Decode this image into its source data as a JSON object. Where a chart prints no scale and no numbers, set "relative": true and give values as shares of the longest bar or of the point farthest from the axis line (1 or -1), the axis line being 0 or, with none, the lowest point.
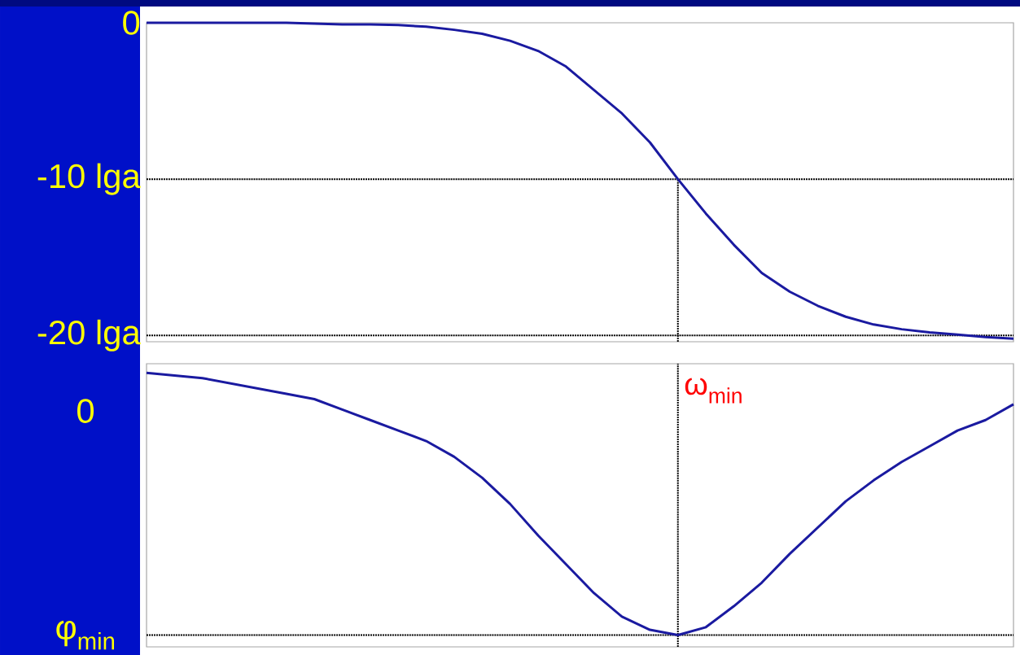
{
  "chart_data": [
    {
      "type": "line",
      "categories": [
        null,
        null,
        null,
        null,
        null,
        null,
        null,
        null,
        null,
        null,
        null,
        null,
        null,
        null,
        null,
        null,
        null,
        null,
        null,
        null,
        null,
        null,
        null,
        null,
        null,
        null,
        null,
        null,
        null,
        null,
        null,
        null
      ],
      "series": [
        {
          "color": "#1a1aa0",
          "values": [
            0,
            0,
            0,
            0,
            0,
            0,
            -0.05,
            -0.1,
            -0.1,
            -0.15,
            -0.25,
            -0.45,
            -0.7,
            -1.15,
            -1.8,
            -2.8,
            -4.3,
            -5.8,
            -7.65,
            -10,
            -12.2,
            -14.2,
            -16,
            -17.2,
            -18.1,
            -18.8,
            -19.3,
            -19.6,
            -19.8,
            -19.95,
            -20.1,
            -20.2
          ]
        }
      ],
      "ylim": [
        -20.4,
        0
      ],
      "yticks": [
        0,
        {
          "value": -10,
          "label": "-10 lga"
        },
        {
          "value": -20,
          "label": "-20 lga"
        }
      ],
      "tick_labels": "y",
      "ref_lines": [
        {
          "axis": "y",
          "value": -10,
          "color": "#000000",
          "line_style": "dotted"
        },
        {
          "axis": "y",
          "value": -20,
          "color": "#000000",
          "line_style": "dotted"
        }
      ]
    },
    {
      "type": "line",
      "relative": true,
      "categories": [
        null,
        null,
        null,
        null,
        null,
        null,
        null,
        null,
        null,
        null,
        null,
        null,
        null,
        null,
        null,
        null,
        null,
        null,
        null,
        null,
        null,
        null,
        null,
        null,
        null,
        null,
        null,
        null,
        null,
        null,
        null,
        null
      ],
      "series": [
        {
          "color": "#1a1aa0",
          "values": [
            1,
            0.99,
            0.98,
            0.96,
            0.94,
            0.92,
            0.9,
            0.86,
            0.82,
            0.78,
            0.74,
            0.68,
            0.6,
            0.5,
            0.38,
            0.27,
            0.16,
            0.07,
            0.02,
            0,
            0.03,
            0.11,
            0.2,
            0.31,
            0.41,
            0.51,
            0.59,
            0.66,
            0.72,
            0.78,
            0.82,
            0.88
          ]
        }
      ],
      "tick_labels": false,
      "annotations": [
        "0",
        "φ$_{min}$",
        "ω$_{min}$"
      ]
    }
  ]
}
